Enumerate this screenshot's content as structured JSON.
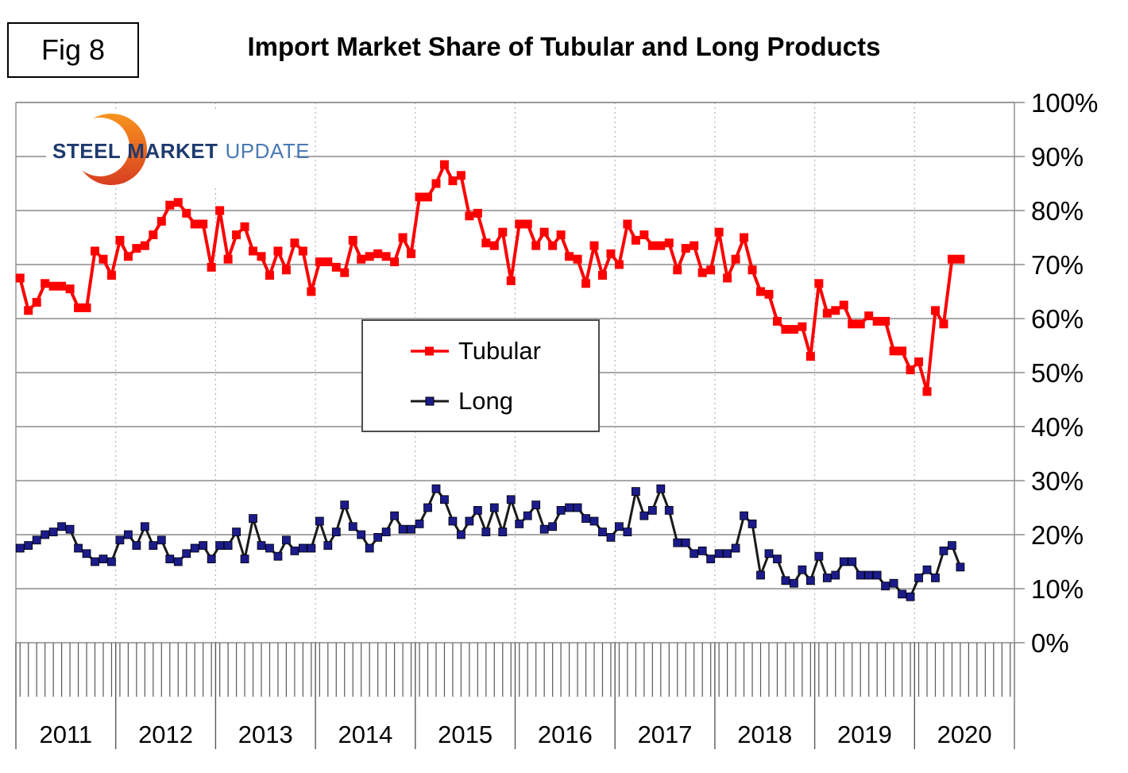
{
  "figure": {
    "tag": "Fig 8",
    "title": "Import Market Share of Tubular and Long Products"
  },
  "logo": {
    "word1": "STEEL",
    "word2": "MARKET",
    "word3": "UPDATE",
    "crescent_top_color": "#F7941E",
    "crescent_bottom_color": "#D93E20",
    "dark_blue": "#1e3a6e",
    "light_blue": "#4a7ab5"
  },
  "legend": {
    "items": [
      {
        "label": "Tubular",
        "line_color": "#FE0000",
        "marker_color": "#FE0000"
      },
      {
        "label": "Long",
        "line_color": "#1a1a1a",
        "marker_color": "#1b1b8a"
      }
    ]
  },
  "chart_data": {
    "type": "line",
    "title": "Import Market Share of Tubular and Long Products",
    "x_unit": "month",
    "x_range": "Jan 2011 - Jun 2020",
    "years": [
      "2011",
      "2012",
      "2013",
      "2014",
      "2015",
      "2016",
      "2017",
      "2018",
      "2019",
      "2020"
    ],
    "y_tick_labels": [
      "100%",
      "90%",
      "80%",
      "70%",
      "60%",
      "50%",
      "40%",
      "30%",
      "20%",
      "10%",
      "0%"
    ],
    "ylim": [
      0,
      100
    ],
    "grid": "horizontal gray lines each 10%, dotted vertical lines at year boundaries",
    "legend_position": "center of plot",
    "series": [
      {
        "name": "Tubular",
        "color": "#FE0000",
        "marker": "square",
        "values": [
          67.5,
          61.5,
          63,
          66.5,
          66,
          66,
          65.5,
          62,
          62,
          72.5,
          71,
          68,
          74.5,
          71.5,
          73,
          73.5,
          75.5,
          78,
          81,
          81.5,
          79.5,
          77.5,
          77.5,
          69.5,
          80,
          71,
          75.5,
          77,
          72.5,
          71.5,
          68,
          72.5,
          69,
          74,
          72.5,
          65,
          70.5,
          70.5,
          69.5,
          68.5,
          74.5,
          71,
          71.5,
          72,
          71.5,
          70.5,
          75,
          72,
          82.5,
          82.5,
          85,
          88.5,
          85.5,
          86.5,
          79,
          79.5,
          74,
          73.5,
          76,
          67,
          77.5,
          77.5,
          73.5,
          76,
          73.5,
          75.5,
          71.5,
          71,
          66.5,
          73.5,
          68,
          72,
          70,
          77.5,
          74.5,
          75.5,
          73.5,
          73.5,
          74,
          69,
          73,
          73.5,
          68.5,
          69,
          76,
          67.5,
          71,
          75,
          69,
          65,
          64.5,
          59.5,
          58,
          58,
          58.5,
          53,
          66.5,
          61,
          61.5,
          62.5,
          59,
          59,
          60.5,
          59.5,
          59.5,
          54,
          54,
          50.5,
          52,
          46.5,
          61.5,
          59,
          71,
          71
        ]
      },
      {
        "name": "Long",
        "color": "#1a1a1a",
        "marker": "square",
        "marker_color": "#1b1b8a",
        "values": [
          17.5,
          18,
          19,
          20,
          20.5,
          21.5,
          21,
          17.5,
          16.5,
          15,
          15.5,
          15,
          19,
          20,
          18,
          21.5,
          18,
          19,
          15.5,
          15,
          16.5,
          17.5,
          18,
          15.5,
          18,
          18,
          20.5,
          15.5,
          23,
          18,
          17.5,
          16,
          19,
          17,
          17.5,
          17.5,
          22.5,
          18,
          20.5,
          25.5,
          21.5,
          20,
          17.5,
          19.5,
          20.5,
          23.5,
          21,
          21,
          22,
          25,
          28.5,
          26.5,
          22.5,
          20,
          22.5,
          24.5,
          20.5,
          25,
          20.5,
          26.5,
          22,
          23.5,
          25.5,
          21,
          21.5,
          24.5,
          25,
          25,
          23,
          22.5,
          20.5,
          19.5,
          21.5,
          20.5,
          28,
          23.5,
          24.5,
          28.5,
          24.5,
          18.5,
          18.5,
          16.5,
          17,
          15.5,
          16.5,
          16.5,
          17.5,
          23.5,
          22,
          12.5,
          16.5,
          15.5,
          11.5,
          11,
          13.5,
          11.5,
          16,
          12,
          12.5,
          15,
          15,
          12.5,
          12.5,
          12.5,
          10.5,
          11,
          9,
          8.5,
          12,
          13.5,
          12,
          17,
          18,
          14
        ]
      }
    ]
  }
}
